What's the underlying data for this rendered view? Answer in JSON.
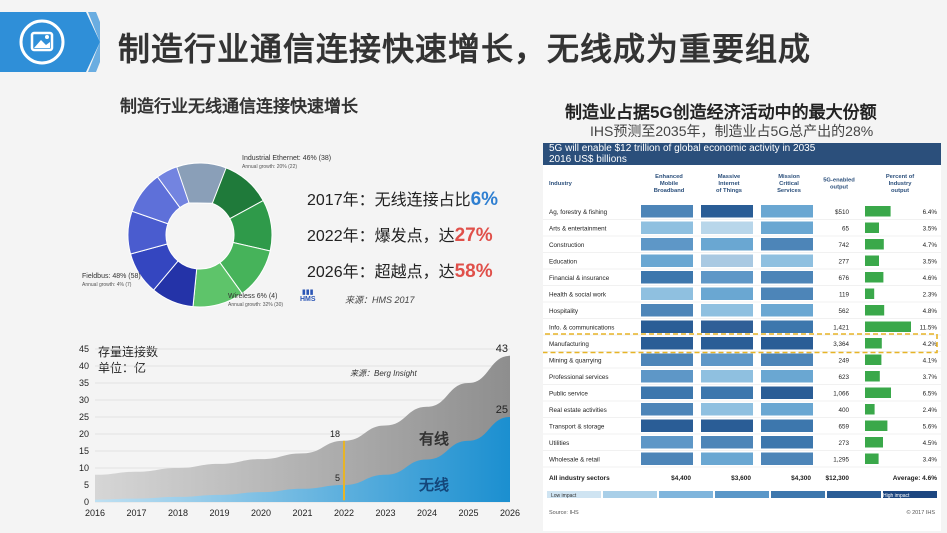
{
  "header": {
    "title": "制造行业通信连接快速增长，无线成为重要组成",
    "badge_icon": "image-icon"
  },
  "left_panel": {
    "subtitle": "制造行业无线通信连接快速增长",
    "donut_labels": {
      "ethernet": "Industrial Ethernet: 46% (38)",
      "ethernet_growth": "Annual growth: 20% (22)",
      "fieldbus": "Fieldbus: 48% (58)",
      "fieldbus_growth": "Annual growth: 4% (7)",
      "wireless": "Wireless 6% (4)",
      "wireless_growth": "Annual growth: 32% (30)"
    },
    "stats": [
      {
        "prefix": "2017年：无线连接占比",
        "value": "6%",
        "color": "#2f7fd1"
      },
      {
        "prefix": "2022年：爆发点，达",
        "value": "27%",
        "color": "#e0504a"
      },
      {
        "prefix": "2026年：超越点，达",
        "value": "58%",
        "color": "#e0504a"
      }
    ],
    "logo_text": "HMS",
    "source": "来源：HMS 2017"
  },
  "right_panel": {
    "subtitle": "制造业占据5G创造经济活动中的最大份额",
    "subtitle2": "IHS预测至2035年，制造业占5G总产出的28%",
    "table_banner_1": "5G will enable $12 trillion of global economic activity in 2035",
    "table_banner_2": "2016 US$ billions",
    "columns": [
      "Industry",
      "Enhanced Mobile Broadband",
      "Massive Internet of Things",
      "Mission Critical Services",
      "5G-enabled output",
      "Percent of Industry output"
    ],
    "rows": [
      {
        "industry": "Ag, forestry & fishing",
        "output": "$510",
        "pct": "6.4%"
      },
      {
        "industry": "Arts & entertainment",
        "output": "65",
        "pct": "3.5%"
      },
      {
        "industry": "Construction",
        "output": "742",
        "pct": "4.7%"
      },
      {
        "industry": "Education",
        "output": "277",
        "pct": "3.5%"
      },
      {
        "industry": "Financial & insurance",
        "output": "676",
        "pct": "4.6%"
      },
      {
        "industry": "Health & social work",
        "output": "119",
        "pct": "2.3%"
      },
      {
        "industry": "Hospitality",
        "output": "562",
        "pct": "4.8%"
      },
      {
        "industry": "Info. & communications",
        "output": "1,421",
        "pct": "11.5%"
      },
      {
        "industry": "Manufacturing",
        "output": "3,364",
        "pct": "4.2%"
      },
      {
        "industry": "Mining & quarrying",
        "output": "249",
        "pct": "4.1%"
      },
      {
        "industry": "Professional services",
        "output": "623",
        "pct": "3.7%"
      },
      {
        "industry": "Public service",
        "output": "1,066",
        "pct": "6.5%"
      },
      {
        "industry": "Real estate activities",
        "output": "400",
        "pct": "2.4%"
      },
      {
        "industry": "Transport & storage",
        "output": "659",
        "pct": "5.6%"
      },
      {
        "industry": "Utilities",
        "output": "273",
        "pct": "4.5%"
      },
      {
        "industry": "Wholesale & retail",
        "output": "1,295",
        "pct": "3.4%"
      }
    ],
    "totals": {
      "label": "All industry sectors",
      "embb": "$4,400",
      "miot": "$3,600",
      "mcs": "$4,300",
      "output": "$12,300",
      "pct": "Average: 4.6%"
    },
    "legend_low": "Low impact",
    "legend_high": "High impact",
    "source": "Source: IHS",
    "copyright": "© 2017 IHS",
    "highlight_row": "Manufacturing"
  },
  "chart_data": [
    {
      "type": "pie",
      "title": "制造行业无线通信连接快速增长",
      "series": [
        {
          "name": "Industrial Ethernet",
          "share_pct": 46
        },
        {
          "name": "Fieldbus",
          "share_pct": 48
        },
        {
          "name": "Wireless",
          "share_pct": 6
        }
      ]
    },
    {
      "type": "area",
      "title": "存量连接数",
      "unit_label": "单位：亿",
      "source": "来源：Berg Insight",
      "x": [
        2016,
        2017,
        2018,
        2019,
        2020,
        2021,
        2022,
        2023,
        2024,
        2025,
        2026
      ],
      "ylim": [
        0,
        45
      ],
      "yticks": [
        0,
        5,
        10,
        15,
        20,
        25,
        30,
        35,
        40,
        45
      ],
      "series": [
        {
          "name": "有线",
          "values": [
            8,
            8.9,
            10,
            11.2,
            12.6,
            14.3,
            18,
            22.5,
            28,
            35,
            43
          ],
          "color": "#9a9a9a"
        },
        {
          "name": "无线",
          "values": [
            0.7,
            1,
            1.5,
            2.1,
            2.9,
            3.9,
            5,
            8,
            12.5,
            18,
            25
          ],
          "color": "#2e9bd6"
        }
      ],
      "annotations": [
        {
          "x": 2022,
          "series": "有线",
          "label": "18"
        },
        {
          "x": 2022,
          "series": "无线",
          "label": "5"
        },
        {
          "x": 2026,
          "series": "有线",
          "label": "43"
        },
        {
          "x": 2026,
          "series": "无线",
          "label": "25"
        }
      ]
    }
  ]
}
